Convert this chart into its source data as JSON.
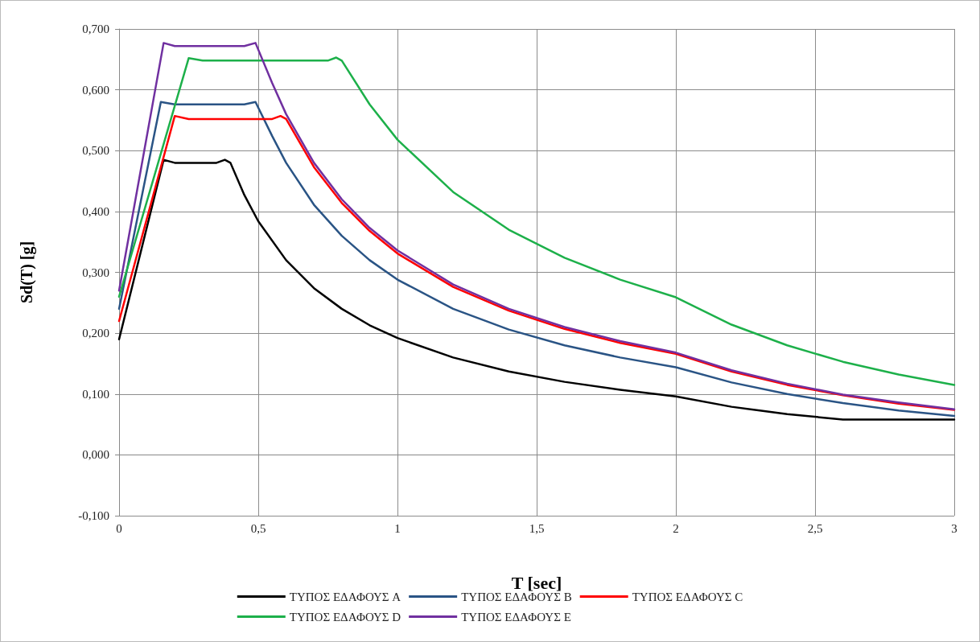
{
  "chart_data": {
    "type": "line",
    "xlabel": "T [sec]",
    "ylabel": "Sd(T) [g]",
    "xlim": [
      0,
      3
    ],
    "ylim": [
      -0.1,
      0.7
    ],
    "xticks": [
      {
        "value": 0,
        "label": "0"
      },
      {
        "value": 0.5,
        "label": "0,5"
      },
      {
        "value": 1,
        "label": "1"
      },
      {
        "value": 1.5,
        "label": "1,5"
      },
      {
        "value": 2,
        "label": "2"
      },
      {
        "value": 2.5,
        "label": "2,5"
      },
      {
        "value": 3,
        "label": "3"
      }
    ],
    "yticks": [
      {
        "value": -0.1,
        "label": "-0,100"
      },
      {
        "value": 0,
        "label": "0,000"
      },
      {
        "value": 0.1,
        "label": "0,100"
      },
      {
        "value": 0.2,
        "label": "0,200"
      },
      {
        "value": 0.3,
        "label": "0,300"
      },
      {
        "value": 0.4,
        "label": "0,400"
      },
      {
        "value": 0.5,
        "label": "0,500"
      },
      {
        "value": 0.6,
        "label": "0,600"
      },
      {
        "value": 0.7,
        "label": "0,700"
      }
    ],
    "grid": true,
    "legend": "bottom",
    "marker": "none",
    "line_style": "solid",
    "series": [
      {
        "name": "ΤΥΠΟΣ ΕΔΑΦΟΥΣ A",
        "color": "#000000",
        "x": [
          0,
          0.16,
          0.2,
          0.35,
          0.38,
          0.4,
          0.45,
          0.5,
          0.6,
          0.7,
          0.8,
          0.9,
          1,
          1.2,
          1.4,
          1.6,
          1.8,
          2,
          2.2,
          2.4,
          2.6,
          2.8,
          3
        ],
        "values": [
          0.19,
          0.485,
          0.48,
          0.48,
          0.485,
          0.48,
          0.427,
          0.384,
          0.32,
          0.274,
          0.24,
          0.213,
          0.192,
          0.16,
          0.137,
          0.12,
          0.107,
          0.096,
          0.079,
          0.067,
          0.058,
          0.058,
          0.058
        ]
      },
      {
        "name": "ΤΥΠΟΣ ΕΔΑΦΟΥΣ B",
        "color": "#2a5485",
        "x": [
          0,
          0.15,
          0.2,
          0.45,
          0.49,
          0.55,
          0.6,
          0.7,
          0.8,
          0.9,
          1,
          1.2,
          1.4,
          1.6,
          1.8,
          2,
          2.2,
          2.4,
          2.6,
          2.8,
          3
        ],
        "values": [
          0.24,
          0.58,
          0.576,
          0.576,
          0.58,
          0.524,
          0.48,
          0.411,
          0.36,
          0.32,
          0.288,
          0.24,
          0.206,
          0.18,
          0.16,
          0.144,
          0.119,
          0.1,
          0.085,
          0.073,
          0.064
        ]
      },
      {
        "name": "ΤΥΠΟΣ ΕΔΑΦΟΥΣ C",
        "color": "#ff0000",
        "x": [
          0,
          0.2,
          0.25,
          0.55,
          0.58,
          0.6,
          0.7,
          0.8,
          0.9,
          1,
          1.2,
          1.4,
          1.6,
          1.8,
          2,
          2.2,
          2.4,
          2.6,
          2.8,
          3
        ],
        "values": [
          0.22,
          0.557,
          0.552,
          0.552,
          0.557,
          0.552,
          0.473,
          0.414,
          0.368,
          0.331,
          0.276,
          0.237,
          0.207,
          0.184,
          0.166,
          0.137,
          0.115,
          0.098,
          0.084,
          0.074
        ]
      },
      {
        "name": "ΤΥΠΟΣ ΕΔΑΦΟΥΣ D",
        "color": "#1db04a",
        "x": [
          0,
          0.25,
          0.3,
          0.75,
          0.78,
          0.8,
          0.9,
          1,
          1.2,
          1.4,
          1.6,
          1.8,
          2,
          2.2,
          2.4,
          2.6,
          2.8,
          3
        ],
        "values": [
          0.26,
          0.652,
          0.648,
          0.648,
          0.653,
          0.648,
          0.576,
          0.518,
          0.432,
          0.37,
          0.324,
          0.288,
          0.259,
          0.214,
          0.18,
          0.153,
          0.132,
          0.115
        ]
      },
      {
        "name": "ΤΥΠΟΣ ΕΔΑΦΟΥΣ E",
        "color": "#7030a0",
        "x": [
          0,
          0.16,
          0.2,
          0.45,
          0.49,
          0.55,
          0.6,
          0.7,
          0.8,
          0.9,
          1,
          1.2,
          1.4,
          1.6,
          1.8,
          2,
          2.2,
          2.4,
          2.6,
          2.8,
          3
        ],
        "values": [
          0.27,
          0.677,
          0.672,
          0.672,
          0.677,
          0.611,
          0.56,
          0.48,
          0.42,
          0.373,
          0.336,
          0.28,
          0.24,
          0.21,
          0.187,
          0.168,
          0.139,
          0.117,
          0.099,
          0.086,
          0.075
        ]
      }
    ]
  }
}
